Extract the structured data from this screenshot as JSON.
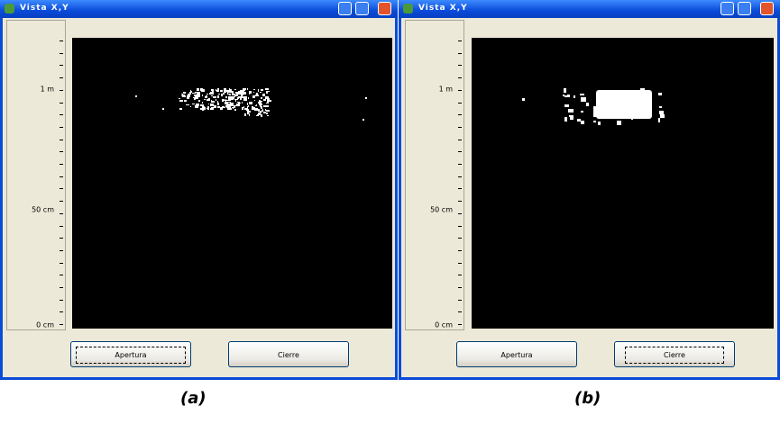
{
  "windows": [
    {
      "title": "Vista X,Y",
      "axis_labels": [
        "1 m",
        "50 cm",
        "0 cm"
      ],
      "buttons": [
        "Apertura",
        "Cierre"
      ],
      "caption": "(a)"
    },
    {
      "title": "Vista X,Y",
      "axis_labels": [
        "1 m",
        "50 cm",
        "0 cm"
      ],
      "buttons": [
        "Apertura",
        "Cierre"
      ],
      "caption": "(b)"
    }
  ]
}
